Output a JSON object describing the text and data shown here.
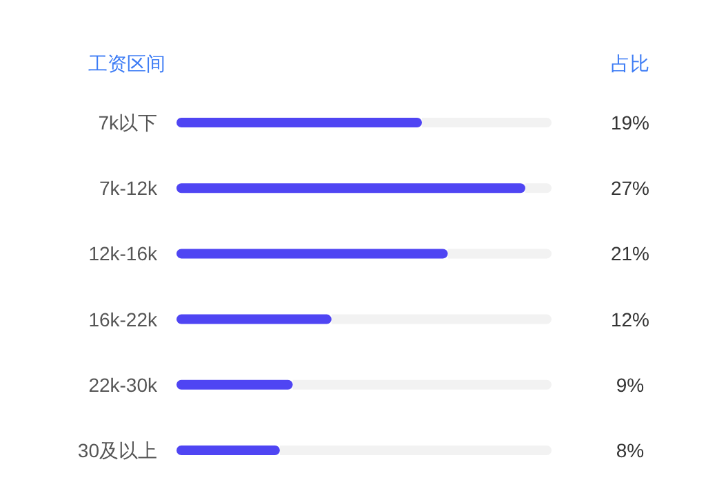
{
  "chart_data": {
    "type": "bar",
    "orientation": "horizontal",
    "ylabel": "工资区间",
    "annotations": [
      "占比"
    ],
    "categories": [
      "7k以下",
      "7k-12k",
      "12k-16k",
      "16k-22k",
      "22k-30k",
      "30及以上"
    ],
    "values": [
      19,
      27,
      21,
      12,
      9,
      8
    ],
    "value_labels": [
      "19%",
      "27%",
      "21%",
      "12%",
      "9%",
      "8%"
    ],
    "color": "#4f45f3"
  }
}
